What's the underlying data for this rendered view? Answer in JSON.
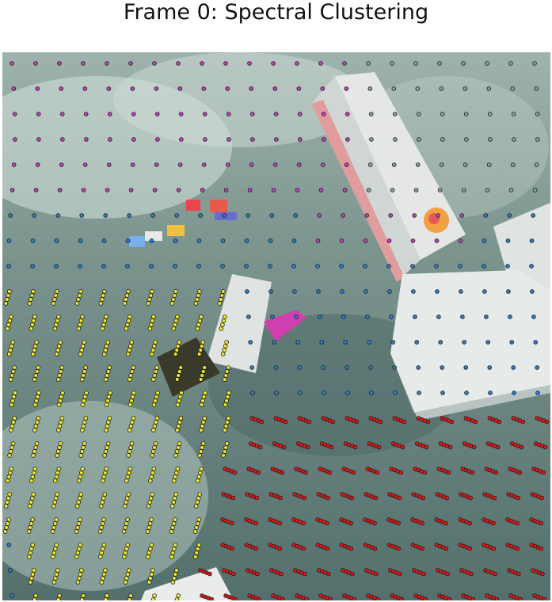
{
  "chart_data": {
    "type": "scatter",
    "title": "Frame 0: Spectral Clustering",
    "background": "photograph of a cluttered floor scene with boxes and toys",
    "xlabel": "",
    "ylabel": "",
    "axes_visible": false,
    "grid": false,
    "legend": "none",
    "series": [
      {
        "name": "cluster-magenta",
        "color": "#c040c0"
      },
      {
        "name": "cluster-blue",
        "color": "#2a7fd0"
      },
      {
        "name": "cluster-gray",
        "color": "#8aa09a"
      },
      {
        "name": "cluster-yellow",
        "color": "#f2ea2a"
      },
      {
        "name": "cluster-red",
        "color": "#e01818"
      }
    ]
  },
  "colors": {
    "ground": "#5f7a78",
    "ground_light": "#a9bdb6",
    "box": "#e2e6e4",
    "box_accent": "#e85a6a",
    "marker_edge": "#1a1a1a"
  }
}
